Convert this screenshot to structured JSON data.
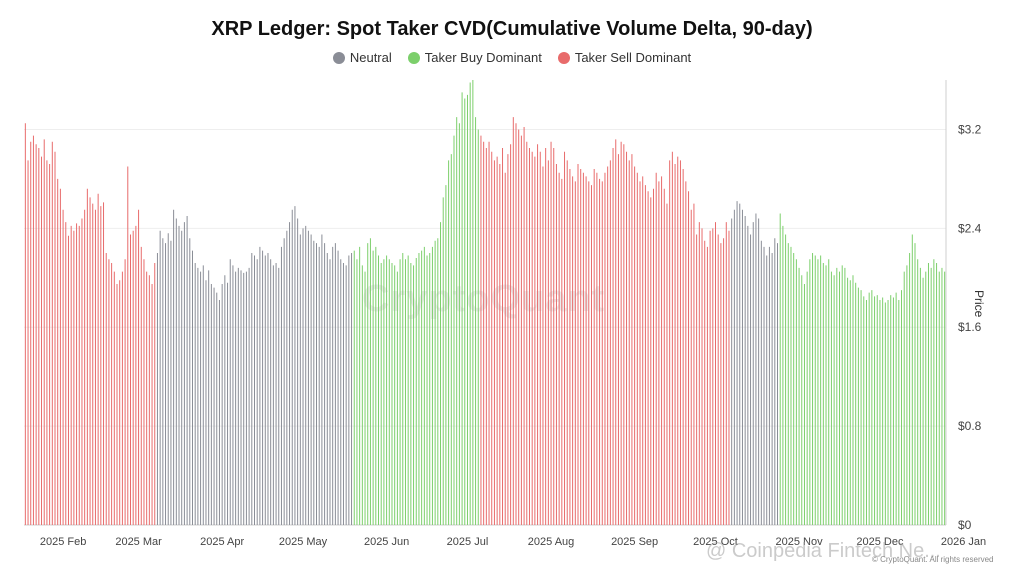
{
  "title": "XRP Ledger: Spot Taker CVD(Cumulative Volume Delta, 90-day)",
  "legend": [
    {
      "label": "Neutral",
      "color": "#8a8d96"
    },
    {
      "label": "Taker Buy Dominant",
      "color": "#7ccf6b"
    },
    {
      "label": "Taker Sell Dominant",
      "color": "#e86b6b"
    }
  ],
  "watermark": "CryptoQuant",
  "source_watermark": "@ Coinpedia Fintech Ne...",
  "copyright": "© CryptoQuant. All rights reserved",
  "chart_data": {
    "type": "bar",
    "title": "XRP Ledger: Spot Taker CVD(Cumulative Volume Delta, 90-day)",
    "ylabel": "Price",
    "ylim": [
      0,
      3.6
    ],
    "yticks": [
      "$0",
      "$0.8",
      "$1.6",
      "$2.4",
      "$3.2"
    ],
    "ytick_values": [
      0,
      0.8,
      1.6,
      2.4,
      3.2
    ],
    "xtick_labels": [
      "2025 Feb",
      "2025 Mar",
      "2025 Apr",
      "2025 May",
      "2025 Jun",
      "2025 Jul",
      "2025 Aug",
      "2025 Sep",
      "2025 Oct",
      "2025 Nov",
      "2025 Dec",
      "2026 Jan"
    ],
    "xtick_index": [
      14,
      42,
      73,
      103,
      134,
      164,
      195,
      226,
      256,
      287,
      317,
      348
    ],
    "start_date": "2025-01-22",
    "series": [
      {
        "name": "Taker Sell Dominant",
        "color": "#e86b6b",
        "values": [
          3.25,
          2.95,
          3.1,
          3.15,
          3.08,
          3.05,
          2.98,
          3.12,
          2.95,
          2.92,
          3.1,
          3.02,
          2.8,
          2.72,
          2.55,
          2.45,
          2.34,
          2.42,
          2.38,
          2.44,
          2.42,
          2.48,
          2.55,
          2.72,
          2.65,
          2.6,
          2.55,
          2.68,
          2.58,
          2.61,
          2.2,
          2.15,
          2.12,
          2.05,
          1.95,
          1.98,
          2.05,
          2.15,
          2.9,
          2.35,
          2.38,
          2.42,
          2.55,
          2.25,
          2.15,
          2.05,
          2.02,
          1.95,
          2.12
        ]
      },
      {
        "name": "Neutral",
        "color": "#8a8d96",
        "values": [
          2.2,
          2.38,
          2.32,
          2.28,
          2.36,
          2.3,
          2.55,
          2.48,
          2.42,
          2.38,
          2.45,
          2.5,
          2.32,
          2.22,
          2.12,
          2.08,
          2.05,
          2.1,
          1.98,
          2.06,
          1.95,
          1.92,
          1.88,
          1.82,
          1.95,
          2.02,
          1.96,
          2.15,
          2.1,
          2.05,
          2.08,
          2.06,
          2.04,
          2.05,
          2.08,
          2.2,
          2.18,
          2.15,
          2.25,
          2.22,
          2.18,
          2.2,
          2.15,
          2.1,
          2.12,
          2.08,
          2.25,
          2.32,
          2.38,
          2.45,
          2.55,
          2.58,
          2.48,
          2.35,
          2.4,
          2.42,
          2.38,
          2.35,
          2.3,
          2.28,
          2.25,
          2.35,
          2.28,
          2.2,
          2.15,
          2.25,
          2.28,
          2.22,
          2.15,
          2.12,
          2.1,
          2.18,
          2.2
        ]
      },
      {
        "name": "Taker Buy Dominant",
        "color": "#7ccf6b",
        "values": [
          2.22,
          2.15,
          2.25,
          2.1,
          2.05,
          2.28,
          2.32,
          2.22,
          2.25,
          2.18,
          2.12,
          2.15,
          2.18,
          2.15,
          2.12,
          2.1,
          2.05,
          2.15,
          2.2,
          2.15,
          2.18,
          2.12,
          2.1,
          2.16,
          2.2,
          2.22,
          2.25,
          2.18,
          2.2,
          2.25,
          2.3,
          2.32,
          2.45,
          2.65,
          2.75,
          2.95,
          3.0,
          3.15,
          3.3,
          3.25,
          3.5,
          3.45,
          3.48,
          3.58,
          3.6,
          3.3,
          3.2
        ]
      },
      {
        "name": "Taker Sell Dominant",
        "color": "#e86b6b",
        "values": [
          3.15,
          3.1,
          3.05,
          3.1,
          3.02,
          2.95,
          2.98,
          2.92,
          3.05,
          2.85,
          3.0,
          3.08,
          3.3,
          3.25,
          3.2,
          3.15,
          3.22,
          3.1,
          3.05,
          3.02,
          2.98,
          3.08,
          3.02,
          2.9,
          3.05,
          2.95,
          3.1,
          3.05,
          2.92,
          2.85,
          2.8,
          3.02,
          2.95,
          2.88,
          2.82,
          2.78,
          2.92,
          2.88,
          2.85,
          2.82,
          2.78,
          2.75,
          2.88,
          2.85,
          2.8,
          2.78,
          2.85,
          2.9,
          2.95,
          3.05,
          3.12,
          3.0,
          3.1,
          3.08,
          3.02,
          2.95,
          3.0,
          2.9,
          2.85,
          2.78,
          2.82,
          2.75,
          2.7,
          2.65,
          2.72,
          2.85,
          2.78,
          2.82,
          2.72,
          2.6,
          2.95,
          3.02,
          2.92,
          2.98,
          2.95,
          2.88,
          2.78,
          2.7,
          2.55,
          2.6,
          2.35,
          2.45,
          2.4,
          2.3,
          2.25,
          2.38,
          2.4,
          2.45,
          2.35,
          2.28,
          2.32,
          2.45,
          2.38
        ]
      },
      {
        "name": "Neutral",
        "color": "#8a8d96",
        "values": [
          2.48,
          2.55,
          2.62,
          2.6,
          2.55,
          2.5,
          2.42,
          2.35,
          2.45,
          2.52,
          2.48,
          2.3,
          2.25,
          2.18,
          2.25,
          2.2,
          2.32,
          2.28
        ]
      },
      {
        "name": "Taker Buy Dominant",
        "color": "#7ccf6b",
        "values": [
          2.52,
          2.42,
          2.35,
          2.28,
          2.25,
          2.2,
          2.15,
          2.08,
          2.02,
          1.95,
          2.05,
          2.15,
          2.2,
          2.18,
          2.15,
          2.18,
          2.12,
          2.1,
          2.15,
          2.05,
          2.02,
          2.08,
          2.05,
          2.1,
          2.08,
          2.0,
          1.98,
          2.02,
          1.96,
          1.92,
          1.9,
          1.85,
          1.82,
          1.88,
          1.9,
          1.85,
          1.86,
          1.82,
          1.84,
          1.8,
          1.82,
          1.86,
          1.84,
          1.88,
          1.82,
          1.9,
          2.05,
          2.1,
          2.2,
          2.35,
          2.28,
          2.15,
          2.08,
          2.0,
          2.05,
          2.12,
          2.08,
          2.15,
          2.12,
          2.05,
          2.08,
          2.05
        ]
      }
    ]
  }
}
